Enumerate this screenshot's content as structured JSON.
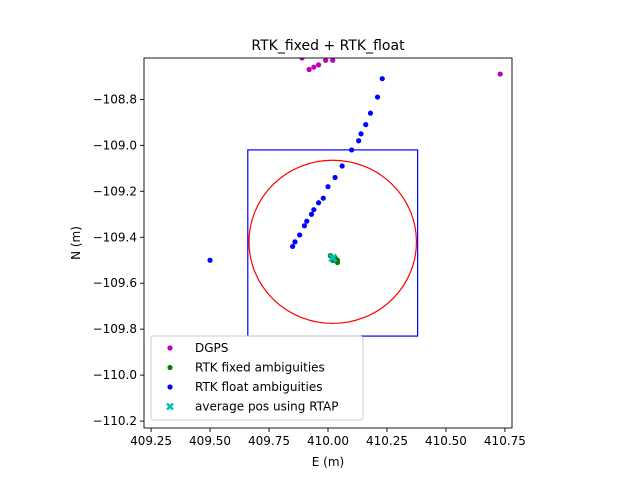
{
  "chart_data": {
    "type": "scatter",
    "title": "RTK_fixed + RTK_float",
    "xlabel": "E (m)",
    "ylabel": "N (m)",
    "xlim": [
      409.22,
      410.78
    ],
    "ylim": [
      -110.23,
      -108.62
    ],
    "xticks": [
      409.25,
      409.5,
      409.75,
      410.0,
      410.25,
      410.5,
      410.75
    ],
    "xtick_labels": [
      "409.25",
      "409.50",
      "409.75",
      "410.00",
      "410.25",
      "410.50",
      "410.75"
    ],
    "yticks": [
      -108.8,
      -109.0,
      -109.2,
      -109.4,
      -109.6,
      -109.8,
      -110.0,
      -110.2
    ],
    "ytick_labels": [
      "−108.8",
      "−109.0",
      "−109.2",
      "−109.4",
      "−109.6",
      "−109.8",
      "−110.0",
      "−110.2"
    ],
    "legend_position": "lower-left",
    "series": [
      {
        "name": "DGPS",
        "color": "#bf00bf",
        "marker": "circle",
        "points": [
          [
            409.89,
            -108.62
          ],
          [
            409.92,
            -108.67
          ],
          [
            409.94,
            -108.66
          ],
          [
            409.96,
            -108.65
          ],
          [
            409.99,
            -108.63
          ],
          [
            410.02,
            -108.63
          ],
          [
            410.73,
            -108.69
          ]
        ]
      },
      {
        "name": "RTK fixed ambiguities",
        "color": "#008000",
        "marker": "circle",
        "points": [
          [
            410.01,
            -109.48
          ],
          [
            410.02,
            -109.49
          ],
          [
            410.03,
            -109.5
          ],
          [
            410.04,
            -109.51
          ],
          [
            410.02,
            -109.5
          ],
          [
            410.03,
            -109.49
          ],
          [
            410.04,
            -109.5
          ]
        ]
      },
      {
        "name": "RTK float ambiguities",
        "color": "#0000ff",
        "marker": "circle",
        "points": [
          [
            409.5,
            -109.5
          ],
          [
            409.85,
            -109.44
          ],
          [
            409.86,
            -109.42
          ],
          [
            409.88,
            -109.39
          ],
          [
            409.9,
            -109.35
          ],
          [
            409.91,
            -109.33
          ],
          [
            409.93,
            -109.3
          ],
          [
            409.94,
            -109.28
          ],
          [
            409.96,
            -109.25
          ],
          [
            409.98,
            -109.23
          ],
          [
            410.0,
            -109.18
          ],
          [
            410.03,
            -109.14
          ],
          [
            410.06,
            -109.09
          ],
          [
            410.1,
            -109.02
          ],
          [
            410.13,
            -108.98
          ],
          [
            410.14,
            -108.95
          ],
          [
            410.16,
            -108.91
          ],
          [
            410.18,
            -108.86
          ],
          [
            410.21,
            -108.79
          ],
          [
            410.23,
            -108.71
          ]
        ]
      },
      {
        "name": "average pos using RTAP",
        "color": "#00bfbf",
        "marker": "x",
        "points": [
          [
            410.02,
            -109.49
          ]
        ]
      }
    ],
    "circle": {
      "cx": 410.02,
      "cy": -109.42,
      "r": 0.355,
      "color": "#ff0000"
    },
    "square": {
      "x0": 409.66,
      "x1": 410.38,
      "y0": -109.83,
      "y1": -109.02,
      "color": "#0000ff"
    }
  }
}
